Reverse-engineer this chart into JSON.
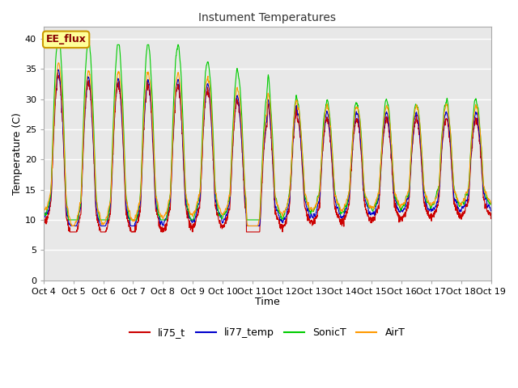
{
  "title": "Instument Temperatures",
  "xlabel": "Time",
  "ylabel": "Temperature (C)",
  "ylim": [
    0,
    42
  ],
  "yticks": [
    0,
    5,
    10,
    15,
    20,
    25,
    30,
    35,
    40
  ],
  "x_labels": [
    "Oct 4",
    "Oct 5",
    "Oct 6",
    "Oct 7",
    "Oct 8",
    "Oct 9",
    "Oct 10",
    "Oct 11",
    "Oct 12",
    "Oct 13",
    "Oct 14",
    "Oct 15",
    "Oct 16",
    "Oct 17",
    "Oct 18",
    "Oct 19"
  ],
  "series_names": [
    "li75_t",
    "li77_temp",
    "SonicT",
    "AirT"
  ],
  "series_colors": [
    "#cc0000",
    "#0000cc",
    "#00cc00",
    "#ff9900"
  ],
  "annotation_text": "EE_flux",
  "annotation_bg": "#ffff99",
  "annotation_border": "#cc9900",
  "bg_color": "#e8e8e8",
  "fig_bg": "#ffffff",
  "days": 15
}
